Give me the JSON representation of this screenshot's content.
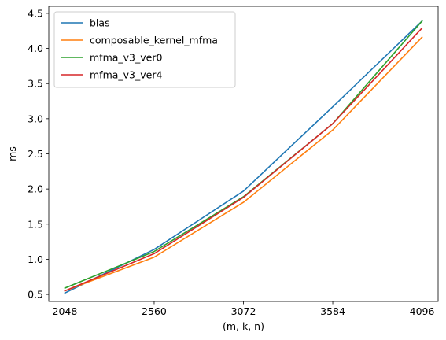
{
  "chart_data": {
    "type": "line",
    "title": "",
    "xlabel": "(m, k, n)",
    "ylabel": "ms",
    "x": [
      2048,
      2560,
      3072,
      3584,
      4096
    ],
    "xticks": [
      "2048",
      "2560",
      "3072",
      "3584",
      "4096"
    ],
    "yticks": [
      "0.5",
      "1.0",
      "1.5",
      "2.0",
      "2.5",
      "3.0",
      "3.5",
      "4.0",
      "4.5"
    ],
    "ylim": [
      0.4,
      4.6
    ],
    "grid": false,
    "legend_position": "top-left",
    "series": [
      {
        "name": "blas",
        "color": "#1f77b4",
        "values": [
          0.52,
          1.14,
          1.97,
          3.17,
          4.39
        ]
      },
      {
        "name": "composable_kernel_mfma",
        "color": "#ff7f0e",
        "values": [
          0.55,
          1.03,
          1.81,
          2.84,
          4.16
        ]
      },
      {
        "name": "mfma_v3_ver0",
        "color": "#2ca02c",
        "values": [
          0.59,
          1.11,
          1.89,
          2.93,
          4.39
        ]
      },
      {
        "name": "mfma_v3_ver4",
        "color": "#d62728",
        "values": [
          0.55,
          1.08,
          1.88,
          2.93,
          4.29
        ]
      }
    ]
  }
}
